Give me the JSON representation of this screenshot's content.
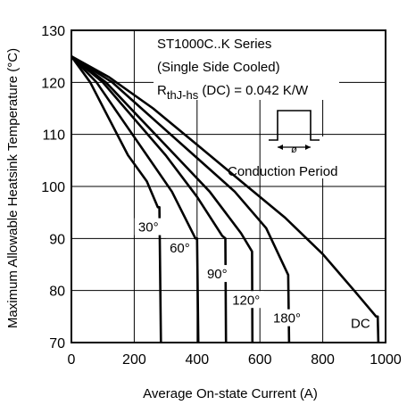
{
  "chart_data": {
    "type": "line",
    "title_lines": [
      "ST1000C..K Series",
      "(Single  Side Cooled)"
    ],
    "rth_label": {
      "main": "R",
      "sub": "thJ-hs",
      "value": " (DC) = 0.042 K/W"
    },
    "inset_symbol": "ø",
    "conduction_label": "Conduction Period",
    "xlabel": "Average On-state Current (A)",
    "ylabel": "Maximum Allowable Heatsink Temperature (°C)",
    "xlim": [
      0,
      1000
    ],
    "ylim": [
      70,
      130
    ],
    "x_ticks": [
      "0",
      "200",
      "400",
      "600",
      "800",
      "1000"
    ],
    "x_tick_values": [
      0,
      200,
      400,
      600,
      800,
      1000
    ],
    "y_ticks": [
      "70",
      "80",
      "90",
      "100",
      "110",
      "120",
      "130"
    ],
    "y_tick_values": [
      70,
      80,
      90,
      100,
      110,
      120,
      130
    ],
    "grid": true,
    "series": [
      {
        "name": "30°",
        "label_at": [
          245,
          91.5
        ],
        "points": [
          [
            0,
            125
          ],
          [
            60,
            120
          ],
          [
            120,
            113
          ],
          [
            180,
            106
          ],
          [
            240,
            101
          ],
          [
            275,
            96
          ],
          [
            280,
            96
          ],
          [
            285,
            70
          ]
        ]
      },
      {
        "name": "60°",
        "label_at": [
          345,
          87.5
        ],
        "points": [
          [
            0,
            125
          ],
          [
            80,
            120
          ],
          [
            160,
            113
          ],
          [
            240,
            106
          ],
          [
            320,
            99
          ],
          [
            395,
            90
          ],
          [
            400,
            90
          ],
          [
            404,
            70
          ]
        ]
      },
      {
        "name": "90°",
        "label_at": [
          464,
          82.5
        ],
        "points": [
          [
            0,
            125
          ],
          [
            100,
            120
          ],
          [
            200,
            113
          ],
          [
            300,
            106
          ],
          [
            400,
            98
          ],
          [
            480,
            90.5
          ],
          [
            490,
            90
          ],
          [
            492,
            70
          ]
        ]
      },
      {
        "name": "120°",
        "label_at": [
          556,
          77.5
        ],
        "points": [
          [
            0,
            125
          ],
          [
            110,
            120
          ],
          [
            220,
            113
          ],
          [
            330,
            106
          ],
          [
            440,
            99
          ],
          [
            540,
            91
          ],
          [
            575,
            87.5
          ],
          [
            576,
            70
          ]
        ]
      },
      {
        "name": "180°",
        "label_at": [
          686,
          74
        ],
        "points": [
          [
            0,
            125
          ],
          [
            130,
            120
          ],
          [
            260,
            113
          ],
          [
            390,
            106
          ],
          [
            520,
            99
          ],
          [
            620,
            92
          ],
          [
            690,
            83
          ],
          [
            693,
            70
          ]
        ]
      },
      {
        "name": "DC",
        "label_at": [
          920,
          73
        ],
        "points": [
          [
            0,
            125
          ],
          [
            120,
            121
          ],
          [
            260,
            115
          ],
          [
            400,
            108
          ],
          [
            540,
            101
          ],
          [
            680,
            94
          ],
          [
            800,
            87
          ],
          [
            900,
            80
          ],
          [
            970,
            75
          ],
          [
            975,
            75
          ],
          [
            977,
            70
          ]
        ]
      }
    ]
  }
}
